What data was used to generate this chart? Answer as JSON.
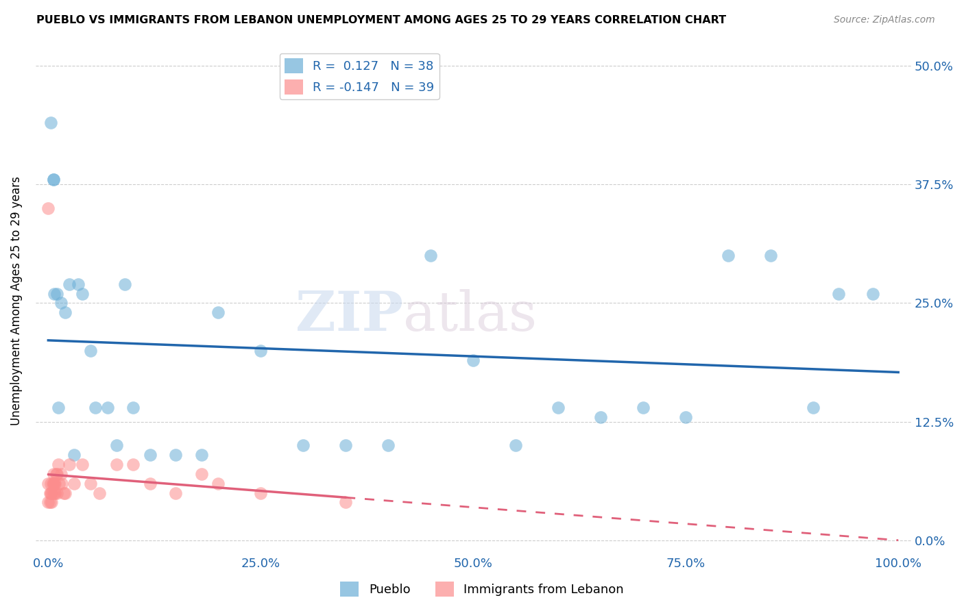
{
  "title": "PUEBLO VS IMMIGRANTS FROM LEBANON UNEMPLOYMENT AMONG AGES 25 TO 29 YEARS CORRELATION CHART",
  "source": "Source: ZipAtlas.com",
  "xlabel_ticks": [
    "0.0%",
    "25.0%",
    "50.0%",
    "75.0%",
    "100.0%"
  ],
  "xlabel_tick_vals": [
    0.0,
    0.25,
    0.5,
    0.75,
    1.0
  ],
  "ylabel_ticks": [
    "0.0%",
    "12.5%",
    "25.0%",
    "37.5%",
    "50.0%"
  ],
  "ylabel_tick_vals": [
    0.0,
    0.125,
    0.25,
    0.375,
    0.5
  ],
  "ylabel": "Unemployment Among Ages 25 to 29 years",
  "pueblo_R": 0.127,
  "pueblo_N": 38,
  "lebanon_R": -0.147,
  "lebanon_N": 39,
  "pueblo_color": "#6baed6",
  "lebanon_color": "#fc8d8d",
  "pueblo_line_color": "#2166ac",
  "lebanon_line_color": "#e0607a",
  "watermark_zip": "ZIP",
  "watermark_atlas": "atlas",
  "pueblo_x": [
    0.003,
    0.006,
    0.006,
    0.007,
    0.01,
    0.012,
    0.015,
    0.02,
    0.025,
    0.03,
    0.035,
    0.04,
    0.05,
    0.055,
    0.07,
    0.08,
    0.09,
    0.1,
    0.12,
    0.15,
    0.18,
    0.2,
    0.25,
    0.3,
    0.35,
    0.4,
    0.45,
    0.5,
    0.55,
    0.6,
    0.65,
    0.7,
    0.75,
    0.8,
    0.85,
    0.9,
    0.93,
    0.97
  ],
  "pueblo_y": [
    0.44,
    0.38,
    0.38,
    0.26,
    0.26,
    0.14,
    0.25,
    0.24,
    0.27,
    0.09,
    0.27,
    0.26,
    0.2,
    0.14,
    0.14,
    0.1,
    0.27,
    0.14,
    0.09,
    0.09,
    0.09,
    0.24,
    0.2,
    0.1,
    0.1,
    0.1,
    0.3,
    0.19,
    0.1,
    0.14,
    0.13,
    0.14,
    0.13,
    0.3,
    0.3,
    0.14,
    0.26,
    0.26
  ],
  "lebanon_x": [
    0.0,
    0.0,
    0.0,
    0.002,
    0.002,
    0.003,
    0.003,
    0.004,
    0.004,
    0.005,
    0.005,
    0.006,
    0.006,
    0.007,
    0.007,
    0.008,
    0.008,
    0.009,
    0.01,
    0.01,
    0.012,
    0.013,
    0.015,
    0.016,
    0.018,
    0.02,
    0.025,
    0.03,
    0.04,
    0.05,
    0.06,
    0.08,
    0.1,
    0.12,
    0.15,
    0.18,
    0.2,
    0.25,
    0.35
  ],
  "lebanon_y": [
    0.35,
    0.06,
    0.04,
    0.05,
    0.04,
    0.06,
    0.05,
    0.05,
    0.04,
    0.05,
    0.06,
    0.06,
    0.07,
    0.06,
    0.05,
    0.06,
    0.05,
    0.07,
    0.07,
    0.05,
    0.08,
    0.06,
    0.07,
    0.06,
    0.05,
    0.05,
    0.08,
    0.06,
    0.08,
    0.06,
    0.05,
    0.08,
    0.08,
    0.06,
    0.05,
    0.07,
    0.06,
    0.05,
    0.04
  ]
}
